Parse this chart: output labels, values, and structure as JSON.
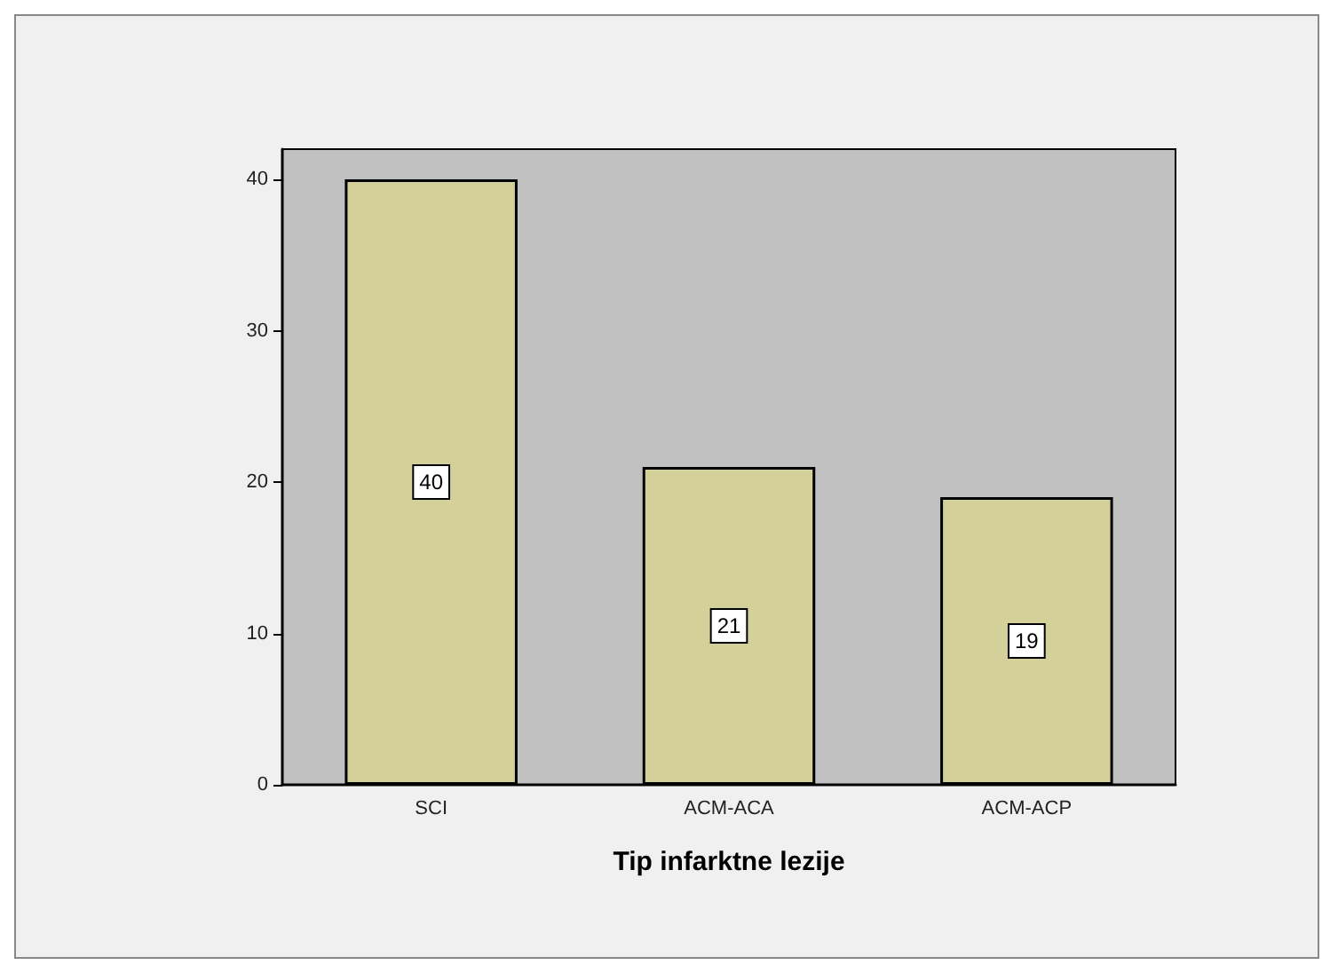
{
  "chart_data": {
    "type": "bar",
    "xlabel": "Tip infarktne lezije",
    "categories": [
      "SCI",
      "ACM-ACA",
      "ACM-ACP"
    ],
    "values": [
      40,
      21,
      19
    ],
    "color": "#d4d09a",
    "ylim": [
      0,
      42
    ],
    "yticks": [
      0,
      10,
      20,
      30,
      40
    ],
    "grid": false,
    "data_labels": true
  }
}
